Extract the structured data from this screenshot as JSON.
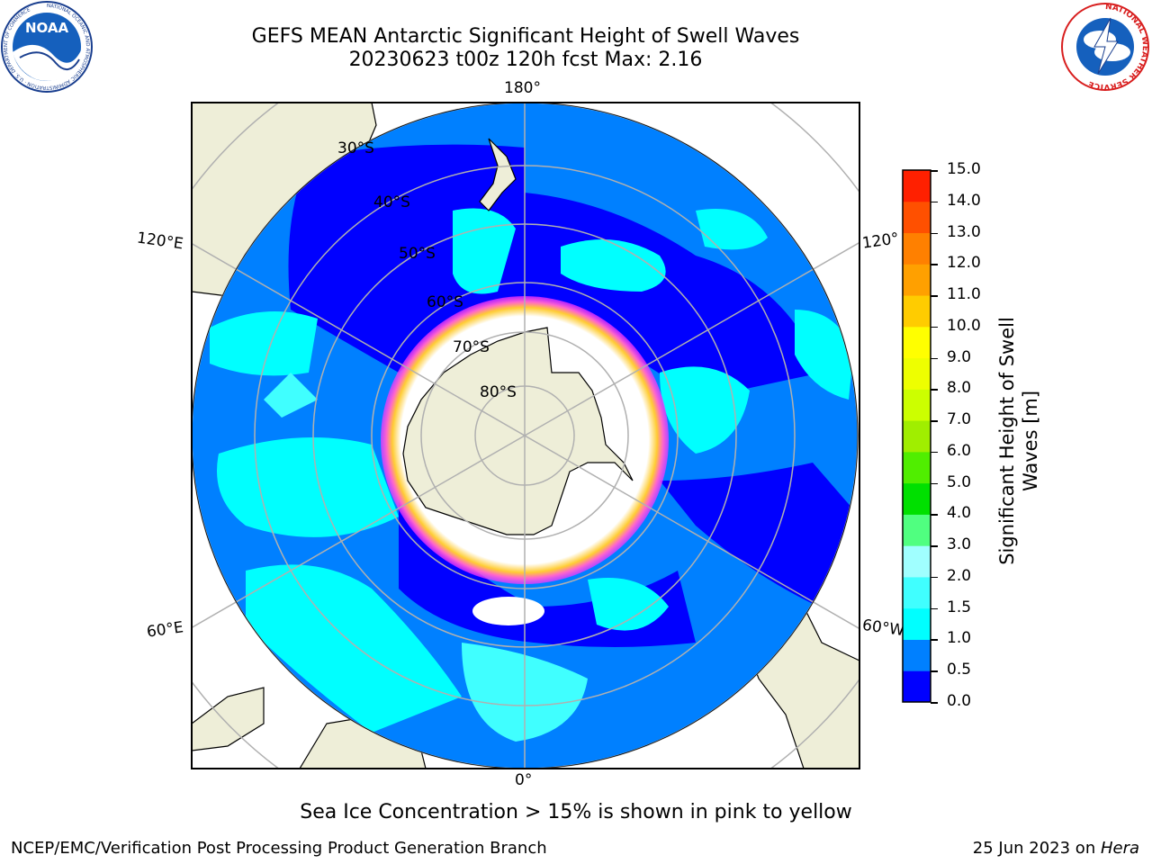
{
  "header": {
    "title_line1": "GEFS MEAN Antarctic Significant Height of Swell Waves",
    "title_line2": "20230623 t00z 120h fcst   Max: 2.16"
  },
  "logos": {
    "noaa_text": "NOAA",
    "noaa_ring": "NATIONAL OCEANIC AND ATMOSPHERIC ADMINISTRATION · U.S. DEPARTMENT OF COMMERCE",
    "nws_ring": "NATIONAL WEATHER SERVICE"
  },
  "map": {
    "lon_labels": {
      "top": "180°",
      "bottom": "0°",
      "upper_left": "120°E",
      "upper_right": "120°",
      "lower_left": "60°E",
      "lower_right": "60°W"
    },
    "lat_labels": [
      "30°S",
      "40°S",
      "50°S",
      "60°S",
      "70°S",
      "80°S"
    ],
    "colors": {
      "ocean_low": "#0000ff",
      "ocean_mid": "#0080ff",
      "ocean_high": "#00ffff",
      "land": "#eeeed8",
      "ice": "#ffffff",
      "ice_edge": "#ff66cc",
      "grid": "#b0b0b0"
    }
  },
  "colorbar": {
    "title_line1": "Significant Height of Swell",
    "title_line2": "Waves [m]",
    "ticks": [
      "0.0",
      "0.5",
      "1.0",
      "1.5",
      "2.0",
      "3.0",
      "4.0",
      "5.0",
      "6.0",
      "7.0",
      "8.0",
      "9.0",
      "10.0",
      "11.0",
      "12.0",
      "13.0",
      "14.0",
      "15.0"
    ],
    "colors": [
      "#0000ff",
      "#0080ff",
      "#00ffff",
      "#40ffff",
      "#a0ffff",
      "#50ff80",
      "#00e000",
      "#50ee00",
      "#a0ee00",
      "#ccff00",
      "#eeff00",
      "#ffff00",
      "#ffcc00",
      "#ffa000",
      "#ff8000",
      "#ff5000",
      "#ff2000",
      "#ff0000"
    ]
  },
  "footer": {
    "note": "Sea Ice Concentration > 15% is shown in pink to yellow",
    "left": "NCEP/EMC/Verification Post Processing Product Generation Branch",
    "right_date": "25 Jun 2023 on ",
    "right_host": "Hera"
  }
}
